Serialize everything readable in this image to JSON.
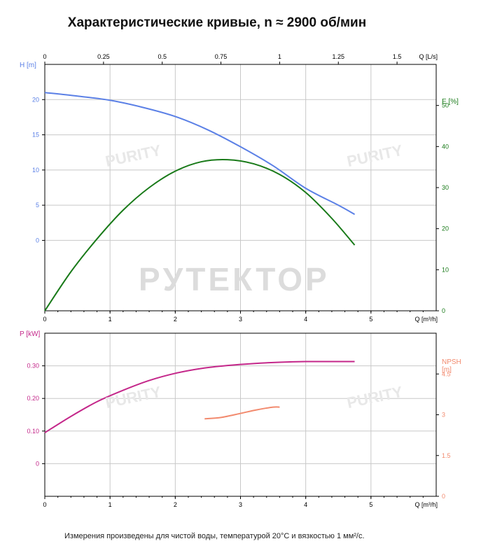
{
  "title": "Характеристические кривые, n ≈ 2900 об/мин",
  "footnote": "Измерения произведены для чистой воды, температурой 20°C и вязкостью 1 мм²/с.",
  "watermark": {
    "main": "PУТЕКТОР",
    "brand": "PURITY"
  },
  "colors": {
    "head": "#5b80e6",
    "efficiency": "#197a19",
    "power": "#c4278a",
    "npsh": "#f28a6e",
    "grid": "#c8c8c8",
    "axis": "#000000"
  },
  "chart_data": [
    {
      "type": "line",
      "xlabel": "Q [m³/h]",
      "x_top_label": "Q [L/s]",
      "xlim": [
        0,
        6
      ],
      "x_ticks": [
        0,
        1,
        2,
        3,
        4,
        5
      ],
      "x_top_ticks": [
        "0",
        "0.25",
        "0.5",
        "0.75",
        "1",
        "1.25",
        "1.5"
      ],
      "x_top_tick_values": [
        0,
        0.25,
        0.5,
        0.75,
        1,
        1.25,
        1.5
      ],
      "left_axis": {
        "label": "H [m]",
        "ticks": [
          "0",
          "5",
          "10",
          "15",
          "20"
        ],
        "tick_values": [
          0,
          5,
          10,
          15,
          20
        ],
        "ylim": [
          -10,
          25
        ]
      },
      "right_axis": {
        "label": "E [%]",
        "ticks": [
          "0",
          "10",
          "20",
          "30",
          "40",
          "50"
        ],
        "tick_values": [
          0,
          10,
          20,
          30,
          40,
          50
        ],
        "ylim": [
          0,
          60
        ]
      },
      "grid": true,
      "series": [
        {
          "axis": "left",
          "x": [
            0,
            0.5,
            1,
            1.5,
            2,
            2.5,
            3,
            3.5,
            4,
            4.5,
            4.75
          ],
          "values": [
            21,
            20.5,
            19.9,
            18.9,
            17.6,
            15.7,
            13.3,
            10.6,
            7.4,
            5.0,
            3.7
          ]
        },
        {
          "axis": "right",
          "x": [
            0,
            0.4,
            0.8,
            1.2,
            1.6,
            2.0,
            2.4,
            2.8,
            3.2,
            3.6,
            4.0,
            4.4,
            4.75
          ],
          "values": [
            0,
            9.5,
            17.5,
            24.5,
            30.0,
            34.0,
            36.3,
            36.8,
            35.8,
            33.2,
            28.8,
            22.5,
            16
          ]
        }
      ]
    },
    {
      "type": "line",
      "xlabel": "Q [m³/h]",
      "xlim": [
        0,
        6
      ],
      "x_ticks": [
        0,
        1,
        2,
        3,
        4,
        5
      ],
      "left_axis": {
        "label": "P [kW]",
        "ticks": [
          "0",
          "0.10",
          "0.20",
          "0.30"
        ],
        "tick_values": [
          0,
          0.1,
          0.2,
          0.3
        ],
        "ylim": [
          -0.1,
          0.4
        ]
      },
      "right_axis": {
        "label_lines": [
          "NPSH",
          "[m]"
        ],
        "ticks": [
          "0",
          "1.5",
          "3",
          "4.5"
        ],
        "tick_values": [
          0,
          1.5,
          3,
          4.5
        ],
        "ylim": [
          0,
          6
        ]
      },
      "grid": true,
      "series": [
        {
          "axis": "left",
          "x": [
            0,
            0.4,
            0.8,
            1.2,
            1.6,
            2.0,
            2.4,
            2.8,
            3.2,
            3.6,
            4.0,
            4.4,
            4.75
          ],
          "values": [
            0.095,
            0.145,
            0.19,
            0.225,
            0.255,
            0.277,
            0.292,
            0.301,
            0.307,
            0.311,
            0.313,
            0.313,
            0.313
          ]
        },
        {
          "axis": "right",
          "x": [
            2.45,
            2.7,
            3.0,
            3.25,
            3.5,
            3.6
          ],
          "values": [
            2.85,
            2.9,
            3.05,
            3.18,
            3.28,
            3.28
          ]
        }
      ]
    }
  ]
}
